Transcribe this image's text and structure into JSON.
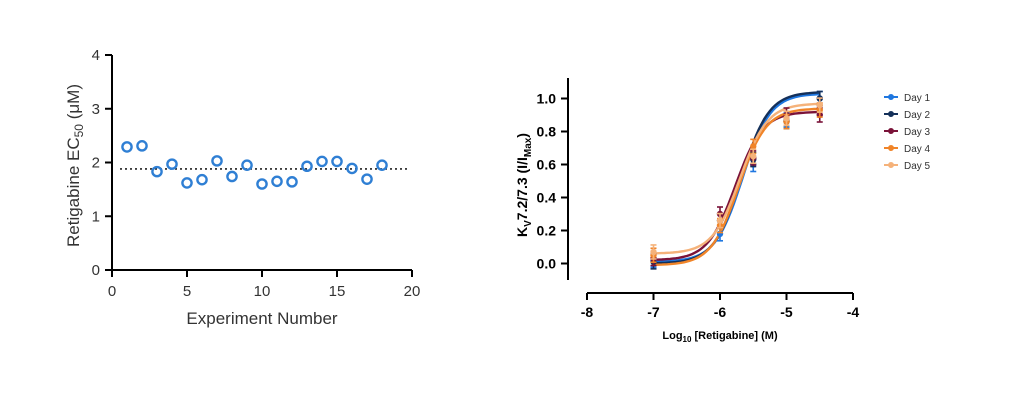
{
  "chart_data": [
    {
      "type": "scatter",
      "xlabel": "Experiment Number",
      "ylabel_main": "Retigabine EC",
      "ylabel_sub": "50",
      "ylabel_unit": " (μM)",
      "xlim": [
        0,
        20
      ],
      "ylim": [
        0,
        4
      ],
      "xticks": [
        0,
        5,
        10,
        15,
        20
      ],
      "yticks": [
        0,
        1,
        2,
        3,
        4
      ],
      "mean_line": 1.88,
      "marker_color": "#2f7fd4",
      "x": [
        1,
        2,
        3,
        4,
        5,
        6,
        7,
        8,
        9,
        10,
        11,
        12,
        13,
        14,
        15,
        16,
        17,
        18
      ],
      "y": [
        2.29,
        2.31,
        1.83,
        1.97,
        1.62,
        1.68,
        2.03,
        1.74,
        1.95,
        1.6,
        1.65,
        1.64,
        1.93,
        2.02,
        2.02,
        1.89,
        1.69,
        1.95
      ]
    },
    {
      "type": "line",
      "xlabel_main": "Log",
      "xlabel_sub": "10",
      "xlabel_rest": " [Retigabine] (M)",
      "ylabel_main": "K",
      "ylabel_sub": "V",
      "ylabel_mid": "7.2/7.3  (I/I",
      "ylabel_sub2": "Max",
      "ylabel_end": ")",
      "xlim": [
        -8,
        -4
      ],
      "ylim": [
        -0.1,
        1.1
      ],
      "xticks": [
        -8,
        -7,
        -6,
        -5,
        -4
      ],
      "yticks": [
        "0.0",
        "0.2",
        "0.4",
        "0.6",
        "0.8",
        "1.0"
      ],
      "legend_position": "right",
      "x": [
        -7,
        -6,
        -5.5,
        -5,
        -4.5
      ],
      "series": [
        {
          "name": "Day 1",
          "color": "#1f77e0",
          "values": [
            0.02,
            0.18,
            0.6,
            0.87,
            1.0
          ],
          "ec50": -5.66,
          "top": 1.03,
          "bottom": 0.01
        },
        {
          "name": "Day 2",
          "color": "#14305a",
          "values": [
            0.01,
            0.26,
            0.63,
            0.86,
            1.0
          ],
          "ec50": -5.68,
          "top": 1.04,
          "bottom": 0.0
        },
        {
          "name": "Day 3",
          "color": "#7a1238",
          "values": [
            0.03,
            0.3,
            0.64,
            0.9,
            0.9
          ],
          "ec50": -5.77,
          "top": 0.92,
          "bottom": 0.02
        },
        {
          "name": "Day 4",
          "color": "#f08428",
          "values": [
            0.05,
            0.23,
            0.71,
            0.86,
            0.93
          ],
          "ec50": -5.72,
          "top": 0.94,
          "bottom": -0.01
        },
        {
          "name": "Day 5",
          "color": "#f5b27a",
          "values": [
            0.07,
            0.26,
            0.65,
            0.88,
            0.96
          ],
          "ec50": -5.7,
          "top": 0.97,
          "bottom": 0.06
        }
      ]
    }
  ]
}
